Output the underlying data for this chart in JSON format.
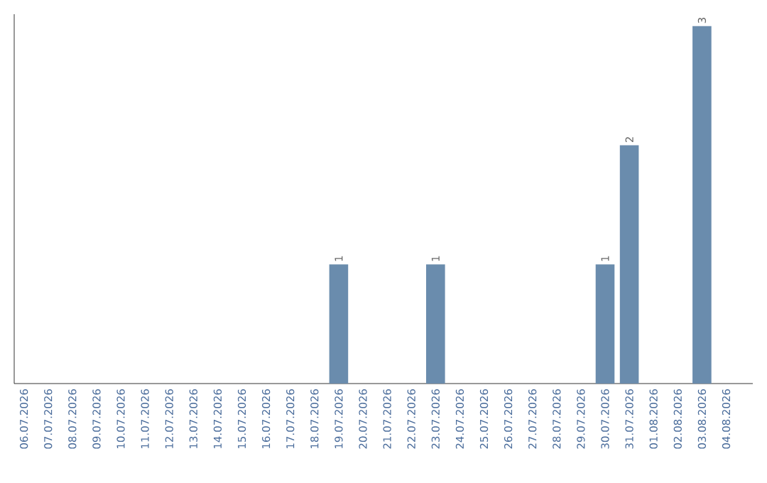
{
  "chart_data": {
    "type": "bar",
    "categories": [
      "06.07.2026",
      "07.07.2026",
      "08.07.2026",
      "09.07.2026",
      "10.07.2026",
      "11.07.2026",
      "12.07.2026",
      "13.07.2026",
      "14.07.2026",
      "15.07.2026",
      "16.07.2026",
      "17.07.2026",
      "18.07.2026",
      "19.07.2026",
      "20.07.2026",
      "21.07.2026",
      "22.07.2026",
      "23.07.2026",
      "24.07.2026",
      "25.07.2026",
      "26.07.2026",
      "27.07.2026",
      "28.07.2026",
      "29.07.2026",
      "30.07.2026",
      "31.07.2026",
      "01.08.2026",
      "02.08.2026",
      "03.08.2026",
      "04.08.2026"
    ],
    "values": [
      null,
      null,
      null,
      null,
      null,
      null,
      null,
      null,
      null,
      null,
      null,
      null,
      null,
      1,
      null,
      null,
      null,
      1,
      null,
      null,
      null,
      null,
      null,
      null,
      1,
      2,
      null,
      null,
      3,
      null
    ],
    "data_labels": true,
    "ylim": [
      0,
      3.1
    ],
    "color": "#6a8cad",
    "tick_labels": "x"
  }
}
